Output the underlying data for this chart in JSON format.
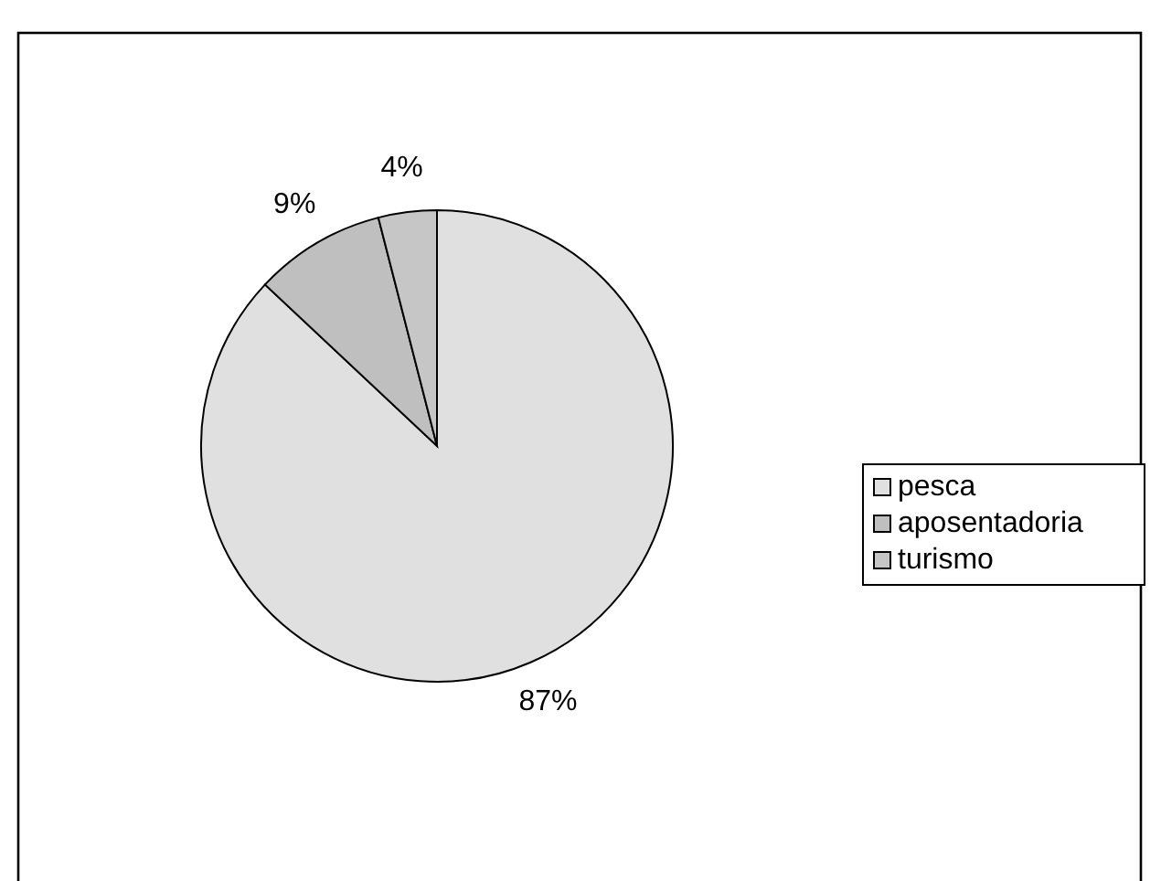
{
  "chart_data": {
    "type": "pie",
    "categories": [
      "pesca",
      "aposentadoria",
      "turismo"
    ],
    "values": [
      87,
      9,
      4
    ],
    "colors": [
      "#e0e0e0",
      "#bfbfbf",
      "#c6c6c6"
    ],
    "legend": "right",
    "value_labels": [
      "87%",
      "9%",
      "4%"
    ]
  }
}
